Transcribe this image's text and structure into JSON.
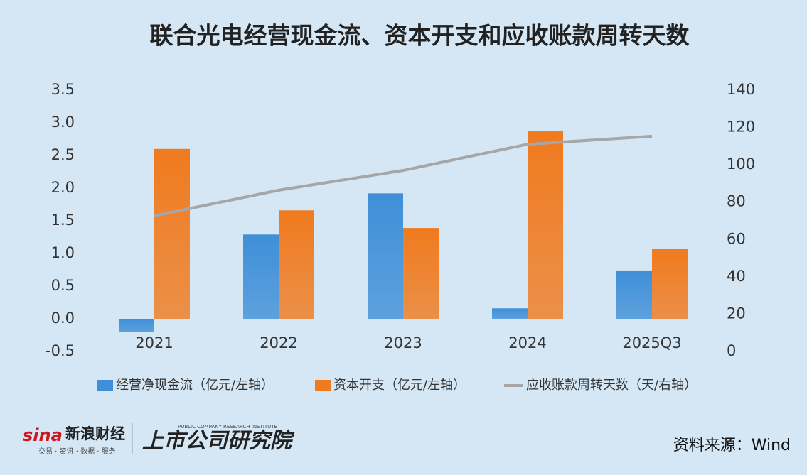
{
  "chart_data": {
    "type": "bar",
    "title": "联合光电经营现金流、资本开支和应收账款周转天数",
    "categories": [
      "2021",
      "2022",
      "2023",
      "2024",
      "2025Q3"
    ],
    "series": [
      {
        "name": "经营净现金流（亿元/左轴）",
        "color": "#3f8fd8",
        "values": [
          -0.2,
          1.29,
          1.92,
          0.16,
          0.74
        ]
      },
      {
        "name": "资本开支（亿元/左轴）",
        "color": "#f07a1e",
        "values": [
          2.6,
          1.66,
          1.39,
          2.87,
          1.07
        ]
      },
      {
        "name": "应收账款周转天数（天/右轴）",
        "color": "#a6a6a6",
        "type": "line",
        "axis": "y2",
        "values": [
          72.7,
          86.4,
          97,
          111,
          115.3
        ]
      }
    ],
    "ylim": [
      -0.5,
      3.5
    ],
    "yticks": [
      -0.5,
      {
        "value": 0,
        "label": "0.0"
      },
      0.5,
      {
        "value": 1,
        "label": "1.0"
      },
      1.5,
      {
        "value": 2,
        "label": "2.0"
      },
      2.5,
      {
        "value": 3,
        "label": "3.0"
      },
      3.5
    ],
    "y2lim": [
      0,
      140
    ],
    "y2ticks": [
      0,
      20,
      40,
      60,
      80,
      100,
      120,
      140
    ],
    "grid": false
  },
  "footer": {
    "logo_mark": "sina",
    "logo_left": "新浪财经",
    "logo_left_sub": "交易 · 资讯 · 数据 · 服务",
    "logo_right": "上市公司研究院",
    "logo_right_sub": "PUBLIC COMPANY RESEARCH INSTITUTE",
    "source": "资料来源：Wind"
  }
}
